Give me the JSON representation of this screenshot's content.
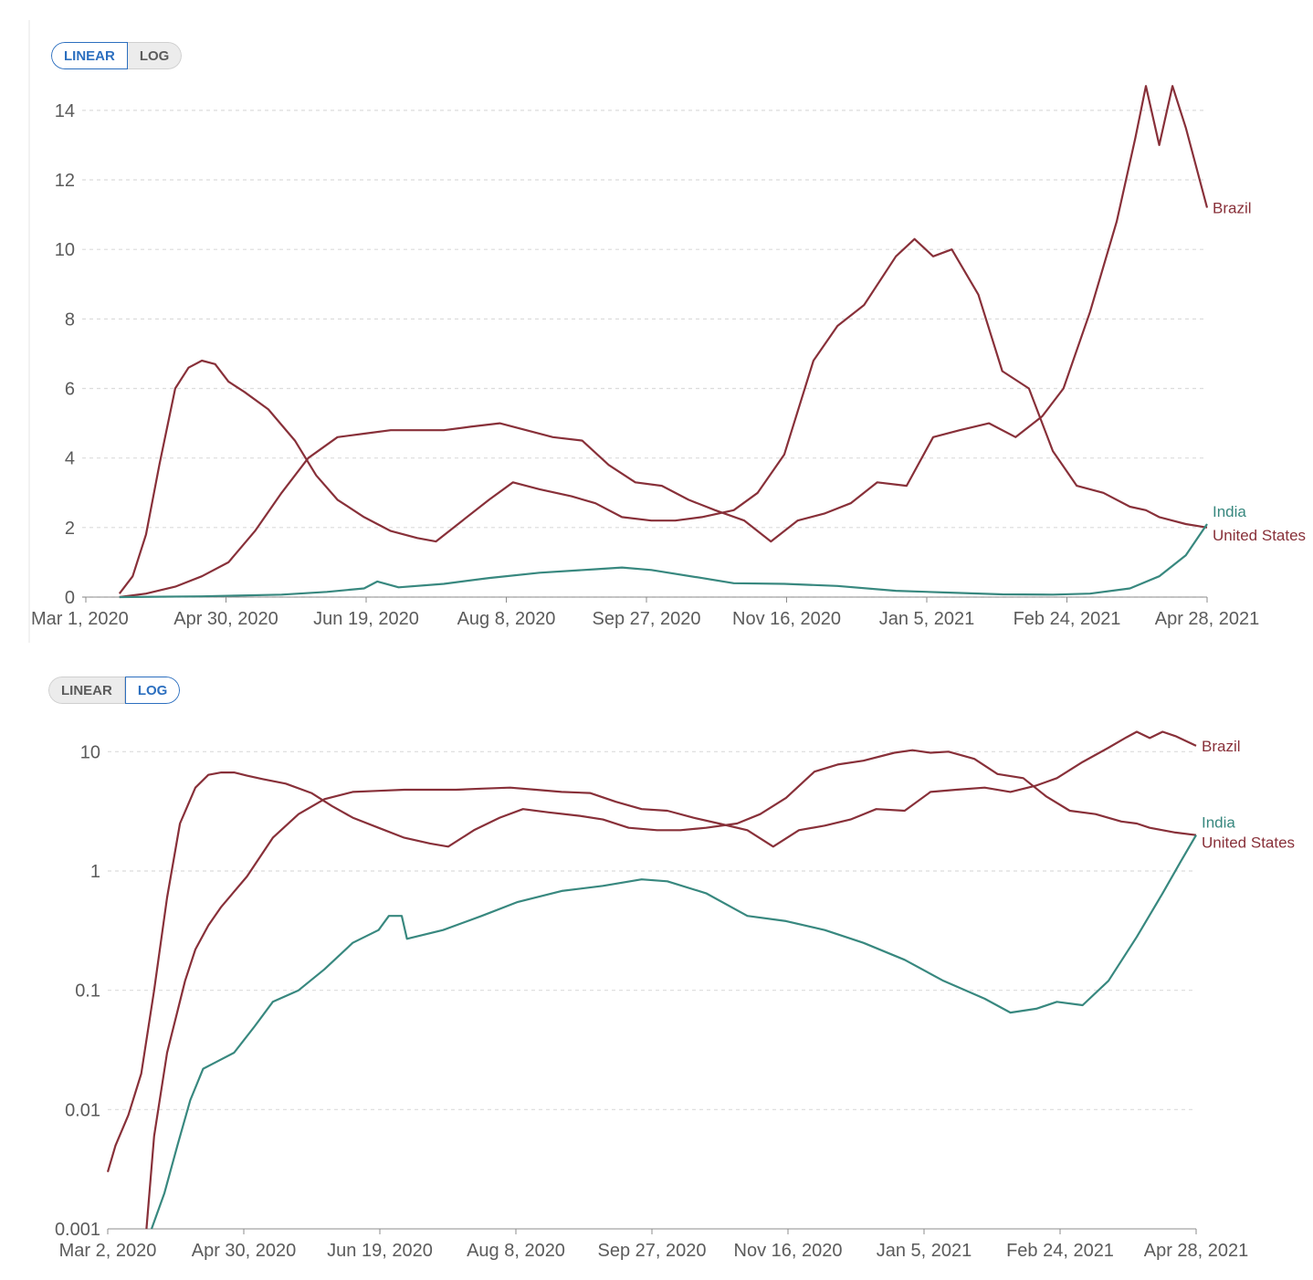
{
  "chart_data": [
    {
      "type": "line",
      "scale": "linear",
      "toggle": {
        "options": [
          "LINEAR",
          "LOG"
        ],
        "selected": "LINEAR"
      },
      "x_ticks": [
        "Mar 1, 2020",
        "Apr 30, 2020",
        "Jun 19, 2020",
        "Aug 8, 2020",
        "Sep 27, 2020",
        "Nov 16, 2020",
        "Jan 5, 2021",
        "Feb 24, 2021",
        "Apr 28, 2021"
      ],
      "y_ticks": [
        "0",
        "2",
        "4",
        "6",
        "8",
        "10",
        "12",
        "14"
      ],
      "xlim": [
        "2020-03-01",
        "2021-04-28"
      ],
      "ylim": [
        0,
        14.6
      ],
      "grid": true,
      "series": [
        {
          "name": "United States",
          "color": "#883039",
          "x": [
            "2020-03-15",
            "2020-03-20",
            "2020-03-25",
            "2020-03-30",
            "2020-04-05",
            "2020-04-10",
            "2020-04-15",
            "2020-04-20",
            "2020-04-25",
            "2020-05-01",
            "2020-05-10",
            "2020-05-20",
            "2020-05-28",
            "2020-06-05",
            "2020-06-15",
            "2020-06-25",
            "2020-07-05",
            "2020-07-12",
            "2020-07-22",
            "2020-08-01",
            "2020-08-10",
            "2020-08-20",
            "2020-09-01",
            "2020-09-10",
            "2020-09-20",
            "2020-10-01",
            "2020-10-10",
            "2020-10-20",
            "2020-11-01",
            "2020-11-10",
            "2020-11-20",
            "2020-12-01",
            "2020-12-10",
            "2020-12-20",
            "2021-01-01",
            "2021-01-08",
            "2021-01-15",
            "2021-01-22",
            "2021-02-01",
            "2021-02-10",
            "2021-02-20",
            "2021-03-01",
            "2021-03-10",
            "2021-03-20",
            "2021-03-30",
            "2021-04-05",
            "2021-04-10",
            "2021-04-15",
            "2021-04-20",
            "2021-04-28"
          ],
          "y": [
            0.1,
            0.6,
            1.8,
            3.8,
            6.0,
            6.6,
            6.8,
            6.7,
            6.2,
            5.9,
            5.4,
            4.5,
            3.5,
            2.8,
            2.3,
            1.9,
            1.7,
            1.6,
            2.2,
            2.8,
            3.3,
            3.1,
            2.9,
            2.7,
            2.3,
            2.2,
            2.2,
            2.3,
            2.5,
            3.0,
            4.1,
            6.8,
            7.8,
            8.4,
            9.8,
            10.3,
            9.8,
            10.0,
            8.7,
            6.5,
            6.0,
            4.2,
            3.2,
            3.0,
            2.6,
            2.5,
            2.3,
            2.2,
            2.1,
            2.0
          ]
        },
        {
          "name": "Brazil",
          "color": "#883039",
          "x": [
            "2020-03-15",
            "2020-03-25",
            "2020-04-05",
            "2020-04-15",
            "2020-04-25",
            "2020-05-05",
            "2020-05-15",
            "2020-05-25",
            "2020-06-05",
            "2020-06-15",
            "2020-06-25",
            "2020-07-05",
            "2020-07-15",
            "2020-07-25",
            "2020-08-05",
            "2020-08-15",
            "2020-08-25",
            "2020-09-05",
            "2020-09-15",
            "2020-09-25",
            "2020-10-05",
            "2020-10-15",
            "2020-10-25",
            "2020-11-05",
            "2020-11-15",
            "2020-11-25",
            "2020-12-05",
            "2020-12-15",
            "2020-12-25",
            "2021-01-05",
            "2021-01-15",
            "2021-01-25",
            "2021-02-05",
            "2021-02-15",
            "2021-02-25",
            "2021-03-05",
            "2021-03-15",
            "2021-03-25",
            "2021-04-01",
            "2021-04-05",
            "2021-04-10",
            "2021-04-15",
            "2021-04-20",
            "2021-04-28"
          ],
          "y": [
            0.0,
            0.1,
            0.3,
            0.6,
            1.0,
            1.9,
            3.0,
            4.0,
            4.6,
            4.7,
            4.8,
            4.8,
            4.8,
            4.9,
            5.0,
            4.8,
            4.6,
            4.5,
            3.8,
            3.3,
            3.2,
            2.8,
            2.5,
            2.2,
            1.6,
            2.2,
            2.4,
            2.7,
            3.3,
            3.2,
            4.6,
            4.8,
            5.0,
            4.6,
            5.2,
            6.0,
            8.2,
            10.8,
            13.2,
            14.7,
            13.0,
            14.7,
            13.5,
            11.2
          ]
        },
        {
          "name": "India",
          "color": "#38887f",
          "x": [
            "2020-03-15",
            "2020-04-15",
            "2020-05-15",
            "2020-06-01",
            "2020-06-15",
            "2020-06-20",
            "2020-06-28",
            "2020-07-15",
            "2020-08-01",
            "2020-08-20",
            "2020-09-10",
            "2020-09-20",
            "2020-10-01",
            "2020-10-20",
            "2020-11-01",
            "2020-11-20",
            "2020-12-10",
            "2021-01-01",
            "2021-01-20",
            "2021-02-10",
            "2021-03-01",
            "2021-03-15",
            "2021-03-30",
            "2021-04-10",
            "2021-04-20",
            "2021-04-28"
          ],
          "y": [
            0.0,
            0.02,
            0.07,
            0.15,
            0.25,
            0.45,
            0.28,
            0.38,
            0.55,
            0.7,
            0.8,
            0.85,
            0.78,
            0.55,
            0.4,
            0.38,
            0.32,
            0.18,
            0.13,
            0.08,
            0.07,
            0.1,
            0.25,
            0.6,
            1.2,
            2.1
          ]
        }
      ]
    },
    {
      "type": "line",
      "scale": "log",
      "toggle": {
        "options": [
          "LINEAR",
          "LOG"
        ],
        "selected": "LOG"
      },
      "x_ticks": [
        "Mar 2, 2020",
        "Apr 30, 2020",
        "Jun 19, 2020",
        "Aug 8, 2020",
        "Sep 27, 2020",
        "Nov 16, 2020",
        "Jan 5, 2021",
        "Feb 24, 2021",
        "Apr 28, 2021"
      ],
      "y_ticks": [
        "0.001",
        "0.01",
        "0.1",
        "1",
        "10"
      ],
      "xlim": [
        "2020-03-02",
        "2021-04-28"
      ],
      "ylim": [
        0.001,
        20
      ],
      "grid": true,
      "series": [
        {
          "name": "United States",
          "color": "#883039",
          "x": [
            "2020-03-02",
            "2020-03-05",
            "2020-03-10",
            "2020-03-15",
            "2020-03-20",
            "2020-03-25",
            "2020-03-30",
            "2020-04-05",
            "2020-04-10",
            "2020-04-15",
            "2020-04-20",
            "2020-04-25",
            "2020-05-01",
            "2020-05-10",
            "2020-05-20",
            "2020-05-28",
            "2020-06-05",
            "2020-06-15",
            "2020-06-25",
            "2020-07-05",
            "2020-07-12",
            "2020-07-22",
            "2020-08-01",
            "2020-08-10",
            "2020-08-20",
            "2020-09-01",
            "2020-09-10",
            "2020-09-20",
            "2020-10-01",
            "2020-10-10",
            "2020-10-20",
            "2020-11-01",
            "2020-11-10",
            "2020-11-20",
            "2020-12-01",
            "2020-12-10",
            "2020-12-20",
            "2021-01-01",
            "2021-01-08",
            "2021-01-15",
            "2021-01-22",
            "2021-02-01",
            "2021-02-10",
            "2021-02-20",
            "2021-03-01",
            "2021-03-10",
            "2021-03-20",
            "2021-03-30",
            "2021-04-05",
            "2021-04-10",
            "2021-04-15",
            "2021-04-20",
            "2021-04-28"
          ],
          "y": [
            0.003,
            0.005,
            0.009,
            0.02,
            0.1,
            0.6,
            2.5,
            5.0,
            6.4,
            6.7,
            6.7,
            6.3,
            5.9,
            5.4,
            4.5,
            3.5,
            2.8,
            2.3,
            1.9,
            1.7,
            1.6,
            2.2,
            2.8,
            3.3,
            3.1,
            2.9,
            2.7,
            2.3,
            2.2,
            2.2,
            2.3,
            2.5,
            3.0,
            4.1,
            6.8,
            7.8,
            8.4,
            9.8,
            10.3,
            9.8,
            10.0,
            8.7,
            6.5,
            6.0,
            4.2,
            3.2,
            3.0,
            2.6,
            2.5,
            2.3,
            2.2,
            2.1,
            2.0
          ]
        },
        {
          "name": "Brazil",
          "color": "#883039",
          "x": [
            "2020-03-17",
            "2020-03-20",
            "2020-03-25",
            "2020-04-01",
            "2020-04-05",
            "2020-04-10",
            "2020-04-15",
            "2020-04-25",
            "2020-05-05",
            "2020-05-15",
            "2020-05-25",
            "2020-06-05",
            "2020-06-15",
            "2020-06-25",
            "2020-07-05",
            "2020-07-15",
            "2020-07-25",
            "2020-08-05",
            "2020-08-15",
            "2020-08-25",
            "2020-09-05",
            "2020-09-15",
            "2020-09-25",
            "2020-10-05",
            "2020-10-15",
            "2020-10-25",
            "2020-11-05",
            "2020-11-15",
            "2020-11-25",
            "2020-12-05",
            "2020-12-15",
            "2020-12-25",
            "2021-01-05",
            "2021-01-15",
            "2021-01-25",
            "2021-02-05",
            "2021-02-15",
            "2021-02-25",
            "2021-03-05",
            "2021-03-15",
            "2021-03-25",
            "2021-04-01",
            "2021-04-05",
            "2021-04-10",
            "2021-04-15",
            "2021-04-20",
            "2021-04-28"
          ],
          "y": [
            0.001,
            0.006,
            0.03,
            0.12,
            0.22,
            0.35,
            0.5,
            0.9,
            1.9,
            3.0,
            4.0,
            4.6,
            4.7,
            4.8,
            4.8,
            4.8,
            4.9,
            5.0,
            4.8,
            4.6,
            4.5,
            3.8,
            3.3,
            3.2,
            2.8,
            2.5,
            2.2,
            1.6,
            2.2,
            2.4,
            2.7,
            3.3,
            3.2,
            4.6,
            4.8,
            5.0,
            4.6,
            5.2,
            6.0,
            8.2,
            10.8,
            13.2,
            14.7,
            13.0,
            14.7,
            13.5,
            11.2
          ]
        },
        {
          "name": "India",
          "color": "#38887f",
          "x": [
            "2020-03-19",
            "2020-03-24",
            "2020-03-29",
            "2020-04-03",
            "2020-04-08",
            "2020-04-13",
            "2020-04-20",
            "2020-04-28",
            "2020-05-05",
            "2020-05-15",
            "2020-05-25",
            "2020-06-05",
            "2020-06-15",
            "2020-06-19",
            "2020-06-24",
            "2020-06-26",
            "2020-07-10",
            "2020-07-25",
            "2020-08-08",
            "2020-08-25",
            "2020-09-10",
            "2020-09-25",
            "2020-10-05",
            "2020-10-20",
            "2020-11-05",
            "2020-11-20",
            "2020-12-05",
            "2020-12-20",
            "2021-01-05",
            "2021-01-20",
            "2021-02-05",
            "2021-02-15",
            "2021-02-25",
            "2021-03-05",
            "2021-03-15",
            "2021-03-25",
            "2021-04-05",
            "2021-04-15",
            "2021-04-22",
            "2021-04-28"
          ],
          "y": [
            0.001,
            0.002,
            0.005,
            0.012,
            0.022,
            0.025,
            0.03,
            0.05,
            0.08,
            0.1,
            0.15,
            0.25,
            0.32,
            0.42,
            0.42,
            0.27,
            0.32,
            0.42,
            0.55,
            0.68,
            0.75,
            0.85,
            0.82,
            0.65,
            0.42,
            0.38,
            0.32,
            0.25,
            0.18,
            0.12,
            0.085,
            0.065,
            0.07,
            0.08,
            0.075,
            0.12,
            0.28,
            0.65,
            1.2,
            2.0
          ]
        }
      ]
    }
  ]
}
